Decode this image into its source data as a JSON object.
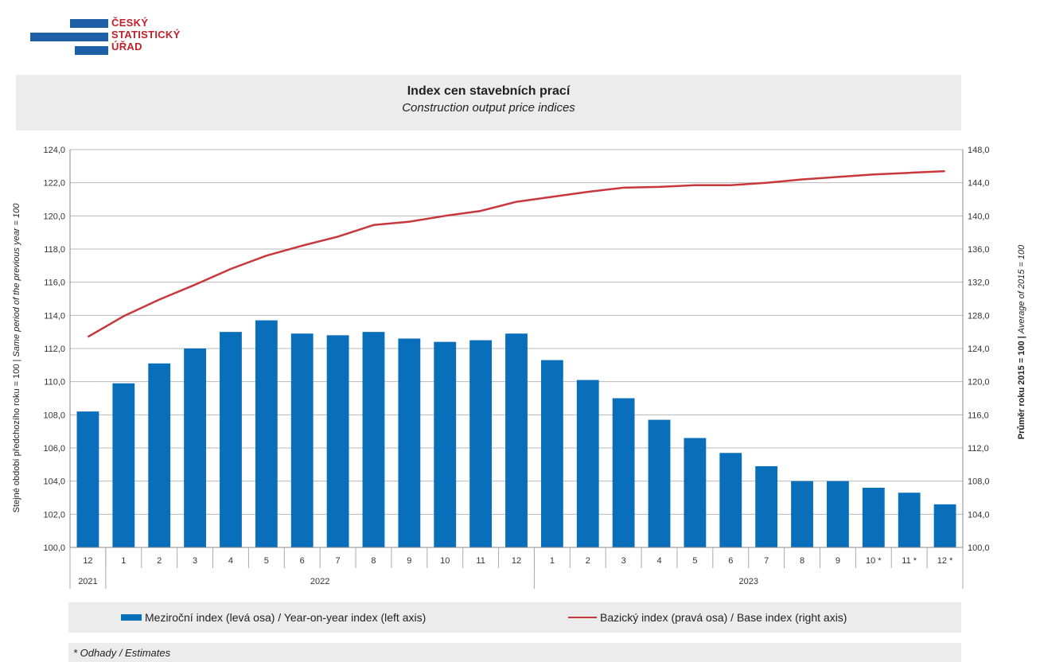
{
  "logo": {
    "line1": "ČESKÝ",
    "line2": "STATISTICKÝ",
    "line3": "ÚŘAD"
  },
  "colors": {
    "bar": "#0a6fba",
    "line": "#c8373c",
    "logo_blue": "#1f5fa8",
    "logo_red": "#c0202a"
  },
  "chart_data": {
    "type": "bar",
    "title": "Index cen stavebních prací",
    "subtitle": "Construction output price indices",
    "categories": [
      "12",
      "1",
      "2",
      "3",
      "4",
      "5",
      "6",
      "7",
      "8",
      "9",
      "10",
      "11",
      "12",
      "1",
      "2",
      "3",
      "4",
      "5",
      "6",
      "7",
      "8",
      "9",
      "10 *",
      "11 *",
      "12 *"
    ],
    "years": [
      {
        "label": "2021",
        "count": 1
      },
      {
        "label": "2022",
        "count": 12
      },
      {
        "label": "2023",
        "count": 12
      }
    ],
    "series": [
      {
        "name": "Meziroční index (levá osa) / Year-on-year index (left axis)",
        "type": "bar",
        "axis": "left",
        "values": [
          108.2,
          109.9,
          111.1,
          112.0,
          113.0,
          113.7,
          112.9,
          112.8,
          113.0,
          112.6,
          112.4,
          112.5,
          112.9,
          111.3,
          110.1,
          109.0,
          107.7,
          106.6,
          105.7,
          104.9,
          104.0,
          104.0,
          103.6,
          103.3,
          102.6
        ]
      },
      {
        "name": "Bazický index (pravá osa) / Base index (right axis)",
        "type": "line",
        "axis": "right",
        "values": [
          125.4,
          127.9,
          129.9,
          131.7,
          133.6,
          135.2,
          136.4,
          137.5,
          138.9,
          139.3,
          140.0,
          140.6,
          141.7,
          142.3,
          142.9,
          143.4,
          143.5,
          143.7,
          143.7,
          144.0,
          144.4,
          144.7,
          145.0,
          145.2,
          145.4
        ]
      }
    ],
    "ylabel_left": "Stejné období předchozího roku = 100 | Same period of the previous year = 100",
    "ylabel_left_parts": [
      "Stejné období předchozího roku = 100 | ",
      "Same period of the previous year = 100"
    ],
    "ylabel_right": "Průměr roku 2015 = 100 | Average of 2015 = 100",
    "ylabel_right_parts": [
      "Průměr roku 2015 = 100 | ",
      "Average of 2015 = 100"
    ],
    "ylim_left": [
      100,
      124
    ],
    "ylim_right": [
      100,
      148
    ],
    "yticks_left": [
      "100,0",
      "102,0",
      "104,0",
      "106,0",
      "108,0",
      "110,0",
      "112,0",
      "114,0",
      "116,0",
      "118,0",
      "120,0",
      "122,0",
      "124,0"
    ],
    "yticks_right": [
      "100,0",
      "104,0",
      "108,0",
      "112,0",
      "116,0",
      "120,0",
      "124,0",
      "128,0",
      "132,0",
      "136,0",
      "140,0",
      "144,0",
      "148,0"
    ],
    "grid": true,
    "legend_position": "bottom",
    "footnote": "* Odhady / Estimates"
  }
}
